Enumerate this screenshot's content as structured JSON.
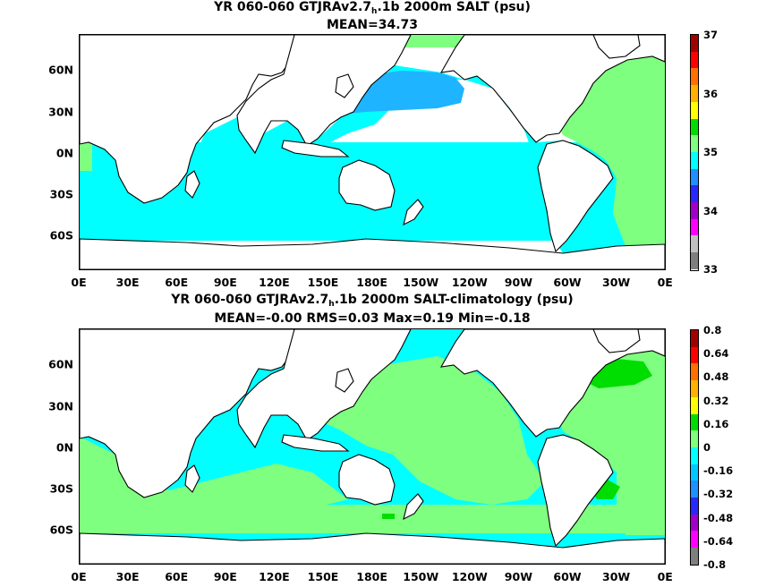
{
  "top": {
    "title_prefix": "YR 060-060 GTJRAv2.7",
    "title_sub": "h",
    "title_suffix": ".1b 2000m SALT (psu)",
    "subtitle": "MEAN=34.73",
    "colorbar": {
      "colors": [
        "#7f7f7f",
        "#c0c0c0",
        "#ff00ff",
        "#a000c8",
        "#2828ff",
        "#1e90ff",
        "#00ffff",
        "#7fff7f",
        "#00dd00",
        "#ffff00",
        "#ffb000",
        "#ff7000",
        "#ff0000",
        "#a00000"
      ],
      "labels": [
        "37",
        "36",
        "35",
        "34",
        "33"
      ]
    }
  },
  "bottom": {
    "title_prefix": "YR 060-060 GTJRAv2.7",
    "title_sub": "h",
    "title_suffix": ".1b 2000m SALT-climatology (psu)",
    "subtitle": "MEAN=-0.00   RMS=0.03   Max=0.19   Min=-0.18",
    "colorbar": {
      "colors": [
        "#7f7f7f",
        "#ff00ff",
        "#a000c8",
        "#2828ff",
        "#1e90ff",
        "#00c8ff",
        "#00ffff",
        "#7fff7f",
        "#00dd00",
        "#ffff00",
        "#ffb000",
        "#ff7000",
        "#ff0000",
        "#a00000"
      ],
      "labels": [
        "0.8",
        "0.64",
        "0.48",
        "0.32",
        "0.16",
        "0",
        "-0.16",
        "-0.32",
        "-0.48",
        "-0.64",
        "-0.8"
      ]
    }
  },
  "lat_ticks": [
    "60N",
    "30N",
    "0N",
    "30S",
    "60S"
  ],
  "lon_ticks": [
    "0E",
    "30E",
    "60E",
    "90E",
    "120E",
    "150E",
    "180E",
    "150W",
    "120W",
    "90W",
    "60W",
    "30W",
    "0E"
  ],
  "colors": {
    "land": "#ffffff",
    "coast": "#000000",
    "cyan": "#00ffff",
    "lightgreen": "#7fff7f",
    "skyblue": "#1eb4ff",
    "green": "#00dd00",
    "yellow": "#ffff00"
  }
}
